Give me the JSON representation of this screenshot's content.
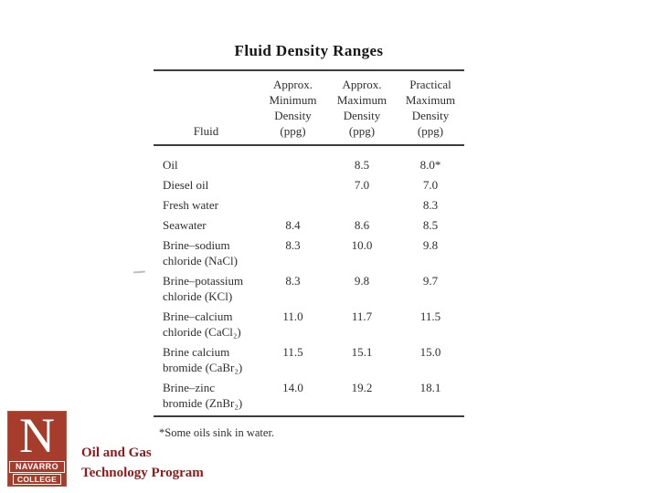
{
  "slide": {
    "title": "Fluid Density Ranges",
    "footnote": "*Some oils sink in water.",
    "table": {
      "header": {
        "fluid": "Fluid",
        "col_min": [
          "Approx.",
          "Minimum",
          "Density",
          "(ppg)"
        ],
        "col_max": [
          "Approx.",
          "Maximum",
          "Density",
          "(ppg)"
        ],
        "col_practical": [
          "Practical",
          "Maximum",
          "Density",
          "(ppg)"
        ]
      },
      "rows": [
        {
          "fluid": [
            "Oil"
          ],
          "min": "",
          "max": "8.5",
          "practical": "8.0*"
        },
        {
          "fluid": [
            "Diesel oil"
          ],
          "min": "",
          "max": "7.0",
          "practical": "7.0"
        },
        {
          "fluid": [
            "Fresh water"
          ],
          "min": "",
          "max": "",
          "practical": "8.3"
        },
        {
          "fluid": [
            "Seawater"
          ],
          "min": "8.4",
          "max": "8.6",
          "practical": "8.5"
        },
        {
          "fluid": [
            "Brine–sodium",
            "chloride (NaCl)"
          ],
          "min": "8.3",
          "max": "10.0",
          "practical": "9.8"
        },
        {
          "fluid": [
            "Brine–potassium",
            "chloride (KCl)"
          ],
          "min": "8.3",
          "max": "9.8",
          "practical": "9.7"
        },
        {
          "fluid": [
            "Brine–calcium",
            "chloride (CaCl₂)"
          ],
          "min": "11.0",
          "max": "11.7",
          "practical": "11.5"
        },
        {
          "fluid": [
            "Brine calcium",
            "bromide (CaBr₂)"
          ],
          "min": "11.5",
          "max": "15.1",
          "practical": "15.0"
        },
        {
          "fluid": [
            "Brine–zinc",
            "bromide (ZnBr₂)"
          ],
          "min": "14.0",
          "max": "19.2",
          "practical": "18.1"
        }
      ]
    },
    "branding": {
      "logo_letter": "N",
      "logo_line1": "NAVARRO",
      "logo_line2": "COLLEGE",
      "logo_color": "#a63c2c",
      "program_line1": "Oil and Gas",
      "program_line2": "Technology Program",
      "program_text_color": "#8e1b1b"
    }
  }
}
